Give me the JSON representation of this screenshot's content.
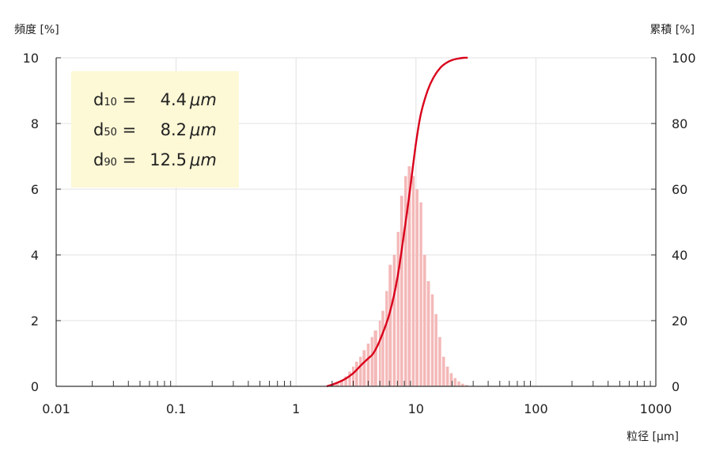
{
  "chart_data": {
    "type": "bar",
    "x_scale": "log",
    "xlim": [
      0.01,
      1000
    ],
    "ylim_left": [
      0,
      10
    ],
    "ylim_right": [
      0,
      100
    ],
    "ylabel_left": "頻度 [%]",
    "ylabel_right": "累積 [%]",
    "xlabel": "粒径 [μm]",
    "x_ticks": [
      "0.01",
      "0.1",
      "1",
      "10",
      "100",
      "1000"
    ],
    "y_ticks_left": [
      "0",
      "2",
      "4",
      "6",
      "8",
      "10"
    ],
    "y_ticks_right": [
      "0",
      "20",
      "40",
      "60",
      "80",
      "100"
    ],
    "grid": true,
    "bar_color": "#f4b8b8",
    "line_color": "#d9001b",
    "legend_bg": "#fdf8d6",
    "frequency": {
      "x": [
        1.9,
        2.05,
        2.2,
        2.4,
        2.6,
        2.8,
        3.0,
        3.2,
        3.45,
        3.7,
        4.0,
        4.3,
        4.6,
        5.0,
        5.3,
        5.7,
        6.1,
        6.6,
        7.1,
        7.6,
        8.2,
        8.8,
        9.5,
        10.2,
        11.0,
        11.8,
        12.7,
        13.7,
        14.7,
        15.8,
        17.0,
        18.3,
        19.7,
        21.2,
        22.8,
        24.5,
        26.4
      ],
      "values": [
        0.05,
        0.08,
        0.12,
        0.2,
        0.3,
        0.45,
        0.6,
        0.75,
        0.9,
        1.1,
        1.3,
        1.5,
        1.7,
        2.0,
        2.3,
        2.9,
        3.7,
        4.0,
        4.7,
        5.8,
        6.4,
        6.7,
        6.4,
        6.0,
        5.6,
        4.0,
        3.2,
        2.8,
        2.2,
        1.5,
        0.9,
        0.6,
        0.4,
        0.25,
        0.15,
        0.08,
        0.04
      ]
    },
    "cumulative": {
      "x": [
        1.8,
        2.0,
        2.5,
        3.0,
        3.5,
        4.0,
        4.4,
        5.0,
        6.0,
        7.0,
        8.2,
        9.0,
        10.0,
        11.0,
        12.5,
        14.0,
        16.0,
        18.0,
        20.0,
        22.0,
        25.0,
        27.0
      ],
      "values": [
        0,
        0.5,
        2,
        4,
        6.5,
        8.5,
        10,
        14,
        22,
        33,
        50,
        61,
        74,
        83,
        90,
        94,
        97,
        98.5,
        99.3,
        99.7,
        100,
        100
      ]
    },
    "stats": [
      {
        "label": "d",
        "sub": "10",
        "eq": " = ",
        "value": "4.4",
        "unit": "μm"
      },
      {
        "label": "d",
        "sub": "50",
        "eq": " = ",
        "value": "8.2",
        "unit": "μm"
      },
      {
        "label": "d",
        "sub": "90",
        "eq": " = ",
        "value": "12.5",
        "unit": "μm"
      }
    ]
  }
}
